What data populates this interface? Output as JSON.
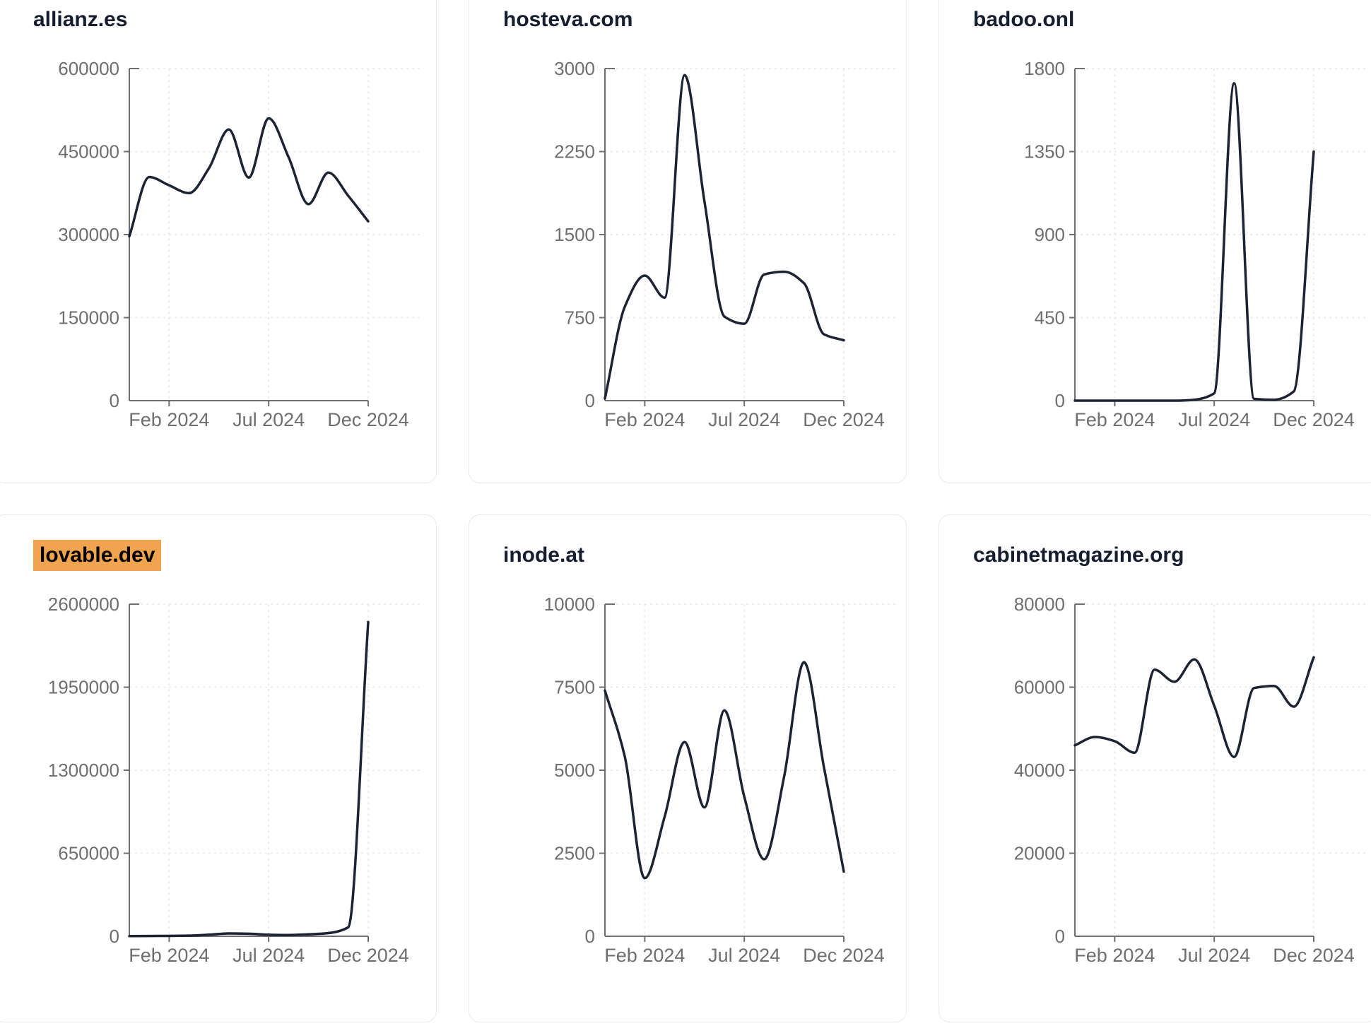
{
  "page": {
    "background": "#ffffff",
    "card_border_color": "#e8eaf0",
    "title_color": "#151d2e",
    "line_color": "#1c2333",
    "axis_color": "#6f6f6f",
    "grid_color": "#e8e8ec",
    "tick_label_color": "#6f6f6f",
    "highlight_color": "#f1a44f"
  },
  "chart_data": [
    {
      "type": "line",
      "title": "allianz.es",
      "highlighted": false,
      "months": [
        "Dec 2023",
        "Jan 2024",
        "Feb 2024",
        "Mar 2024",
        "Apr 2024",
        "May 2024",
        "Jun 2024",
        "Jul 2024",
        "Aug 2024",
        "Sep 2024",
        "Oct 2024",
        "Nov 2024",
        "Dec 2024"
      ],
      "x_ticks": [
        {
          "index": 2,
          "label": "Feb 2024"
        },
        {
          "index": 7,
          "label": "Jul 2024"
        },
        {
          "index": 12,
          "label": "Dec 2024"
        }
      ],
      "values": [
        297000,
        404000,
        389000,
        375000,
        420000,
        490000,
        403000,
        510000,
        440000,
        355000,
        412000,
        370000,
        324000
      ],
      "ylim": [
        0,
        600000
      ],
      "y_ticks": [
        0,
        150000,
        300000,
        450000,
        600000
      ],
      "grid": true,
      "legend": "none"
    },
    {
      "type": "line",
      "title": "hosteva.com",
      "highlighted": false,
      "months": [
        "Dec 2023",
        "Jan 2024",
        "Feb 2024",
        "Mar 2024",
        "Apr 2024",
        "May 2024",
        "Jun 2024",
        "Jul 2024",
        "Aug 2024",
        "Sep 2024",
        "Oct 2024",
        "Nov 2024",
        "Dec 2024"
      ],
      "x_ticks": [
        {
          "index": 2,
          "label": "Feb 2024"
        },
        {
          "index": 7,
          "label": "Jul 2024"
        },
        {
          "index": 12,
          "label": "Dec 2024"
        }
      ],
      "values": [
        20,
        850,
        1130,
        930,
        2940,
        1800,
        760,
        695,
        1140,
        1165,
        1060,
        600,
        545
      ],
      "ylim": [
        0,
        3000
      ],
      "y_ticks": [
        0,
        750,
        1500,
        2250,
        3000
      ],
      "grid": true,
      "legend": "none"
    },
    {
      "type": "line",
      "title": "badoo.onl",
      "highlighted": false,
      "months": [
        "Dec 2023",
        "Jan 2024",
        "Feb 2024",
        "Mar 2024",
        "Apr 2024",
        "May 2024",
        "Jun 2024",
        "Jul 2024",
        "Aug 2024",
        "Sep 2024",
        "Oct 2024",
        "Nov 2024",
        "Dec 2024"
      ],
      "x_ticks": [
        {
          "index": 2,
          "label": "Feb 2024"
        },
        {
          "index": 7,
          "label": "Jul 2024"
        },
        {
          "index": 12,
          "label": "Dec 2024"
        }
      ],
      "values": [
        0,
        0,
        0,
        0,
        0,
        0,
        5,
        40,
        1720,
        10,
        5,
        50,
        1350
      ],
      "ylim": [
        0,
        1800
      ],
      "y_ticks": [
        0,
        450,
        900,
        1350,
        1800
      ],
      "grid": true,
      "legend": "none"
    },
    {
      "type": "line",
      "title": "lovable.dev",
      "highlighted": true,
      "months": [
        "Dec 2023",
        "Jan 2024",
        "Feb 2024",
        "Mar 2024",
        "Apr 2024",
        "May 2024",
        "Jun 2024",
        "Jul 2024",
        "Aug 2024",
        "Sep 2024",
        "Oct 2024",
        "Nov 2024",
        "Dec 2024"
      ],
      "x_ticks": [
        {
          "index": 2,
          "label": "Feb 2024"
        },
        {
          "index": 7,
          "label": "Jul 2024"
        },
        {
          "index": 12,
          "label": "Dec 2024"
        }
      ],
      "values": [
        1000,
        2000,
        3000,
        5000,
        12000,
        22000,
        20000,
        12000,
        10000,
        15000,
        25000,
        70000,
        2460000
      ],
      "ylim": [
        0,
        2600000
      ],
      "y_ticks": [
        0,
        650000,
        1300000,
        1950000,
        2600000
      ],
      "grid": true,
      "legend": "none"
    },
    {
      "type": "line",
      "title": "inode.at",
      "highlighted": false,
      "months": [
        "Dec 2023",
        "Jan 2024",
        "Feb 2024",
        "Mar 2024",
        "Apr 2024",
        "May 2024",
        "Jun 2024",
        "Jul 2024",
        "Aug 2024",
        "Sep 2024",
        "Oct 2024",
        "Nov 2024",
        "Dec 2024"
      ],
      "x_ticks": [
        {
          "index": 2,
          "label": "Feb 2024"
        },
        {
          "index": 7,
          "label": "Jul 2024"
        },
        {
          "index": 12,
          "label": "Dec 2024"
        }
      ],
      "values": [
        7400,
        5400,
        1750,
        3600,
        5850,
        3880,
        6800,
        4200,
        2320,
        4800,
        8250,
        5100,
        1950
      ],
      "ylim": [
        0,
        10000
      ],
      "y_ticks": [
        0,
        2500,
        5000,
        7500,
        10000
      ],
      "grid": true,
      "legend": "none"
    },
    {
      "type": "line",
      "title": "cabinetmagazine.org",
      "highlighted": false,
      "months": [
        "Dec 2023",
        "Jan 2024",
        "Feb 2024",
        "Mar 2024",
        "Apr 2024",
        "May 2024",
        "Jun 2024",
        "Jul 2024",
        "Aug 2024",
        "Sep 2024",
        "Oct 2024",
        "Nov 2024",
        "Dec 2024"
      ],
      "x_ticks": [
        {
          "index": 2,
          "label": "Feb 2024"
        },
        {
          "index": 7,
          "label": "Jul 2024"
        },
        {
          "index": 12,
          "label": "Dec 2024"
        }
      ],
      "values": [
        46000,
        48000,
        47000,
        44200,
        64200,
        61300,
        66700,
        55500,
        43200,
        59800,
        60300,
        55300,
        67200
      ],
      "ylim": [
        0,
        80000
      ],
      "y_ticks": [
        0,
        20000,
        40000,
        60000,
        80000
      ],
      "grid": true,
      "legend": "none"
    }
  ]
}
